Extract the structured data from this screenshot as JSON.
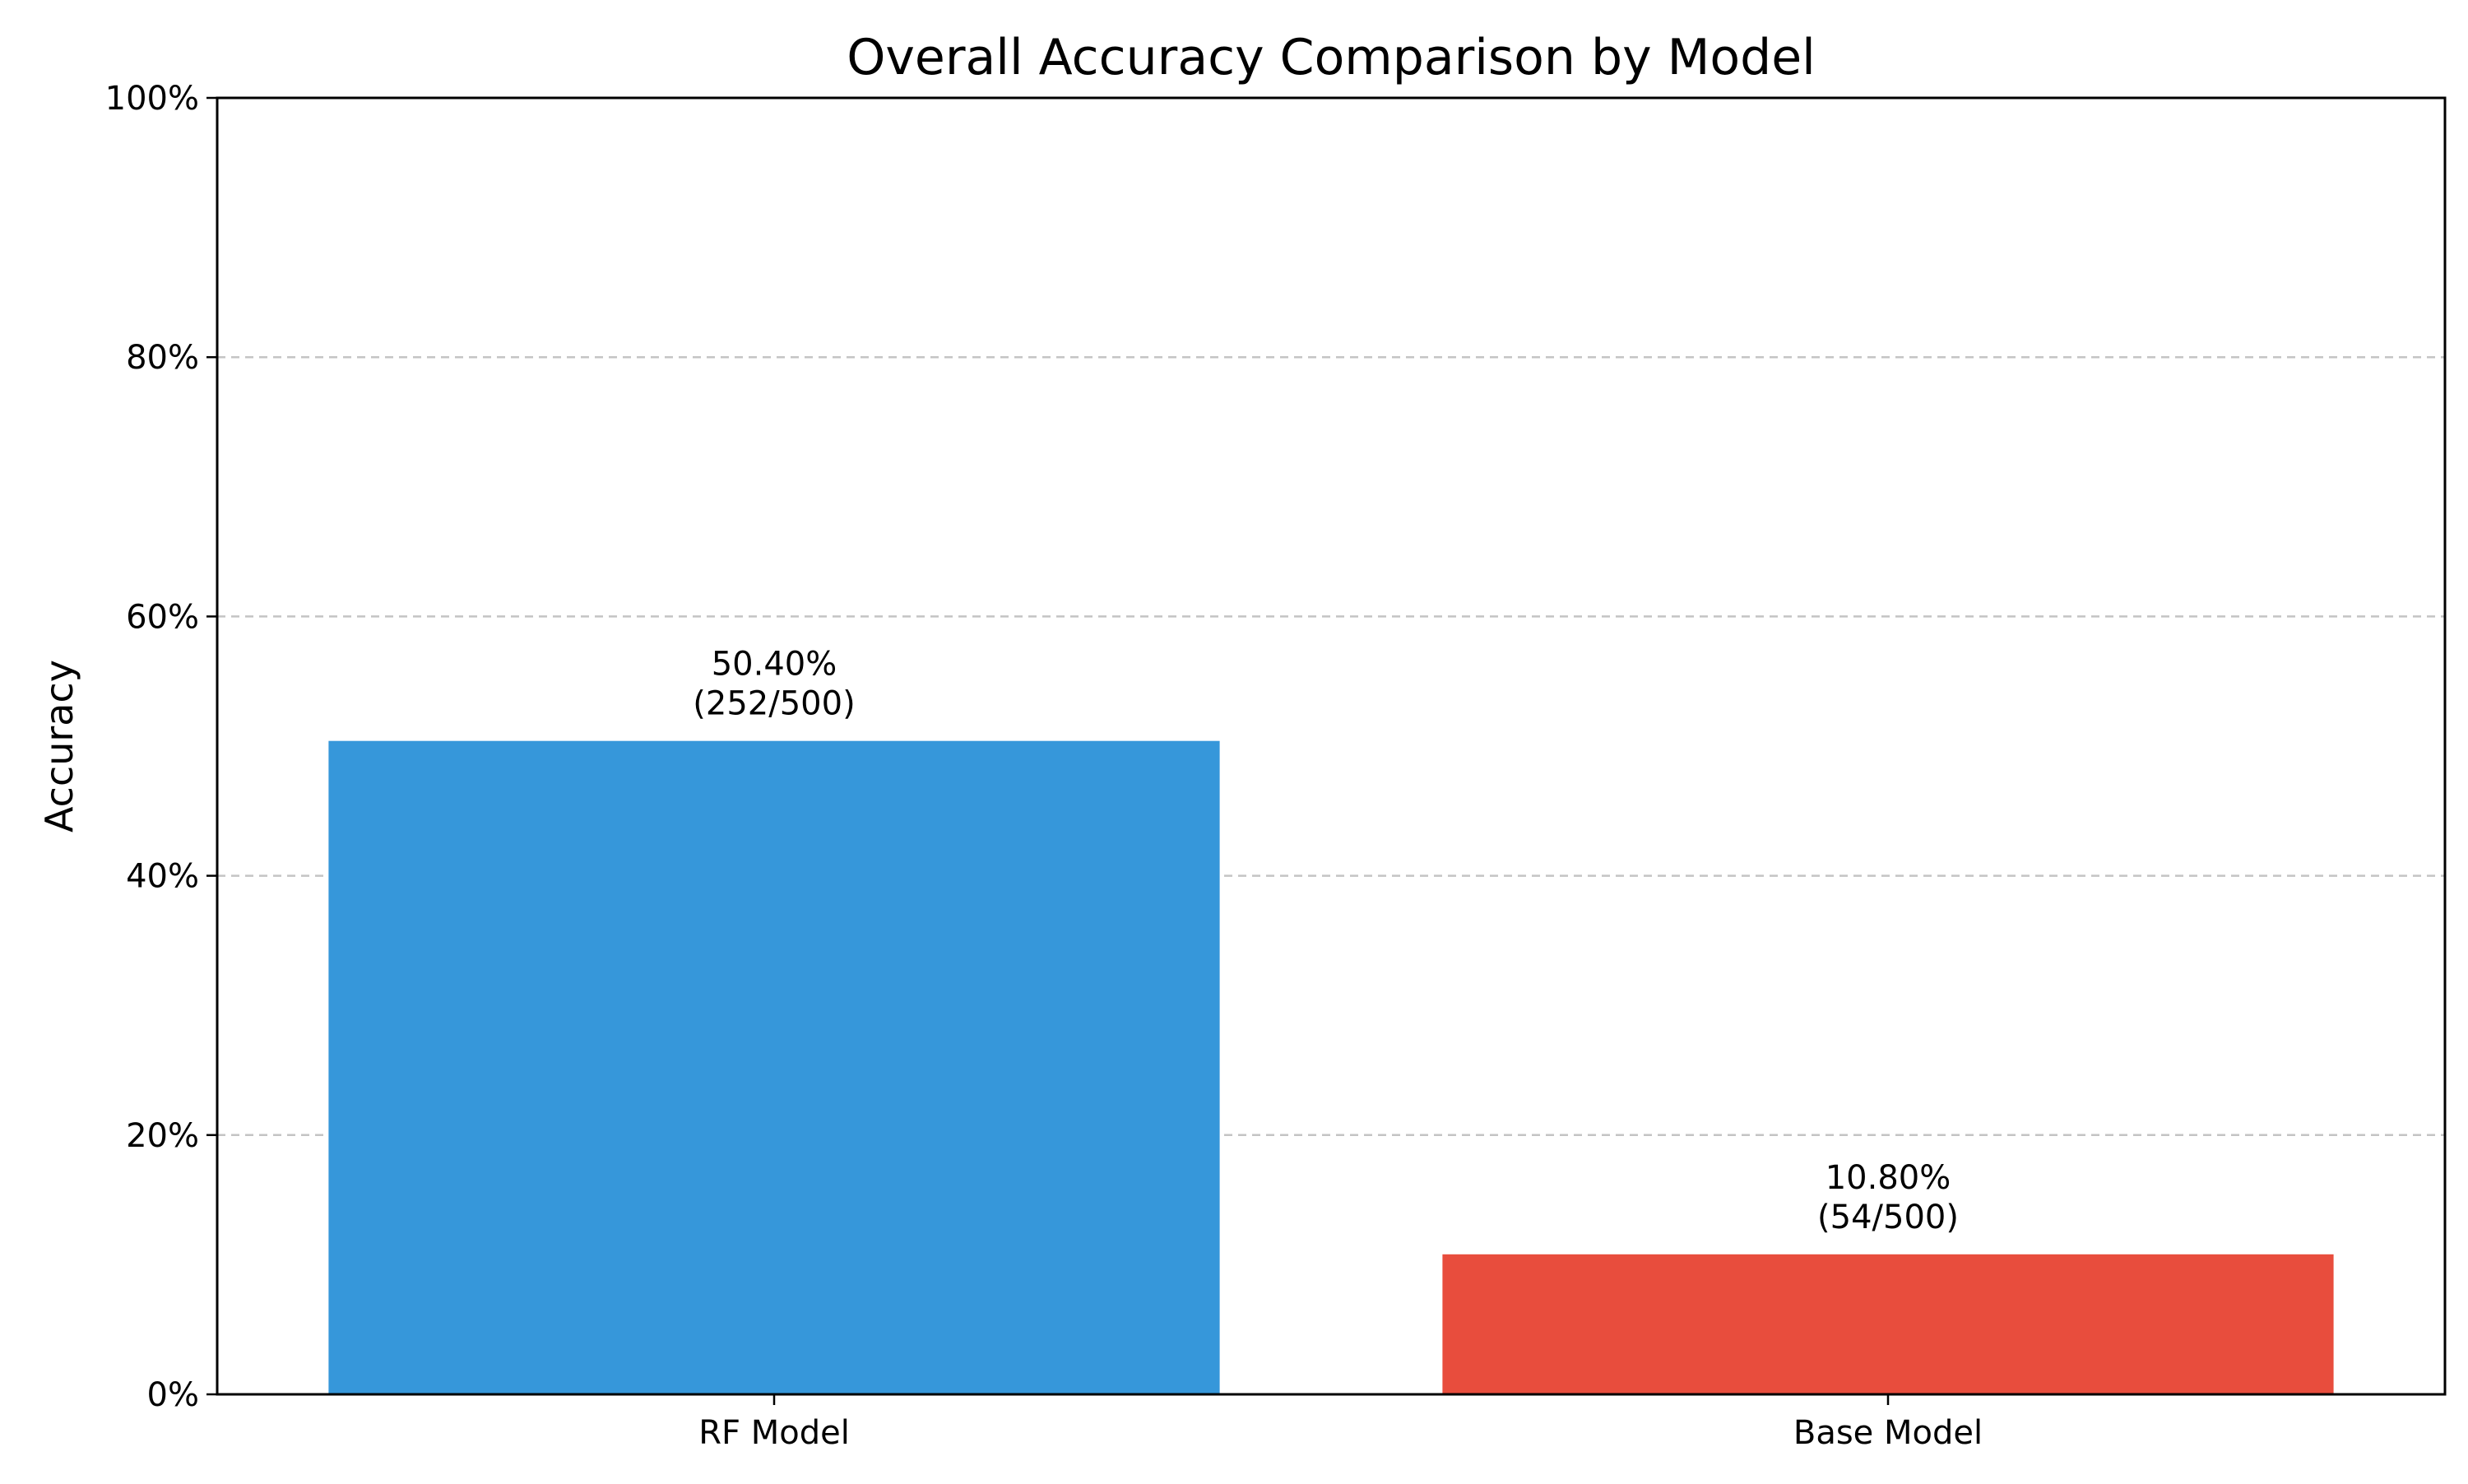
{
  "chart_data": {
    "type": "bar",
    "title": "Overall Accuracy Comparison by Model",
    "xlabel": "",
    "ylabel": "Accuracy",
    "categories": [
      "RF Model",
      "Base Model"
    ],
    "values": [
      50.4,
      10.8
    ],
    "bar_labels": [
      [
        "50.40%",
        "(252/500)"
      ],
      [
        "10.80%",
        "(54/500)"
      ]
    ],
    "colors": [
      "#3697da",
      "#e84d3d"
    ],
    "ylim": [
      0,
      100
    ],
    "y_ticks": [
      0,
      20,
      40,
      60,
      80,
      100
    ],
    "y_tick_labels": [
      "0%",
      "20%",
      "40%",
      "60%",
      "80%",
      "100%"
    ],
    "grid": {
      "y": true,
      "x": false,
      "style": "dashed",
      "color": "#c4c4c4"
    },
    "legend": "none"
  }
}
